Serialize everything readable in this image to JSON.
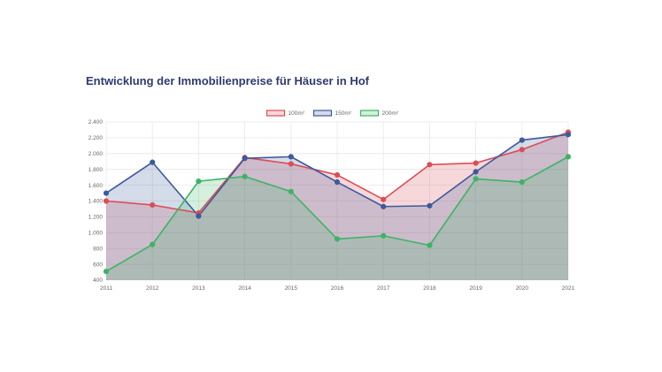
{
  "title": "Entwicklung der Immobilienpreise für Häuser in Hof",
  "chart_data": {
    "type": "area",
    "title": "Entwicklung der Immobilienpreise für Häuser in Hof",
    "xlabel": "",
    "ylabel": "",
    "categories": [
      "2011",
      "2012",
      "2013",
      "2014",
      "2015",
      "2016",
      "2017",
      "2018",
      "2019",
      "2020",
      "2021"
    ],
    "y_ticks": [
      "400",
      "600",
      "800",
      "1.000",
      "1.200",
      "1.400",
      "1.600",
      "1.800",
      "2.000",
      "2.200",
      "2.400"
    ],
    "ylim": [
      400,
      2400
    ],
    "grid": true,
    "legend_position": "top",
    "series": [
      {
        "name": "100m²",
        "color": "#dc4e55",
        "values": [
          1400,
          1350,
          1250,
          1950,
          1870,
          1730,
          1420,
          1860,
          1880,
          2050,
          2270
        ]
      },
      {
        "name": "150m²",
        "color": "#3d5a9c",
        "values": [
          1500,
          1890,
          1210,
          1940,
          1960,
          1640,
          1330,
          1340,
          1770,
          2170,
          2240
        ]
      },
      {
        "name": "200m²",
        "color": "#3cb464",
        "values": [
          510,
          850,
          1650,
          1710,
          1520,
          920,
          960,
          840,
          1680,
          1640,
          1960
        ]
      }
    ]
  }
}
